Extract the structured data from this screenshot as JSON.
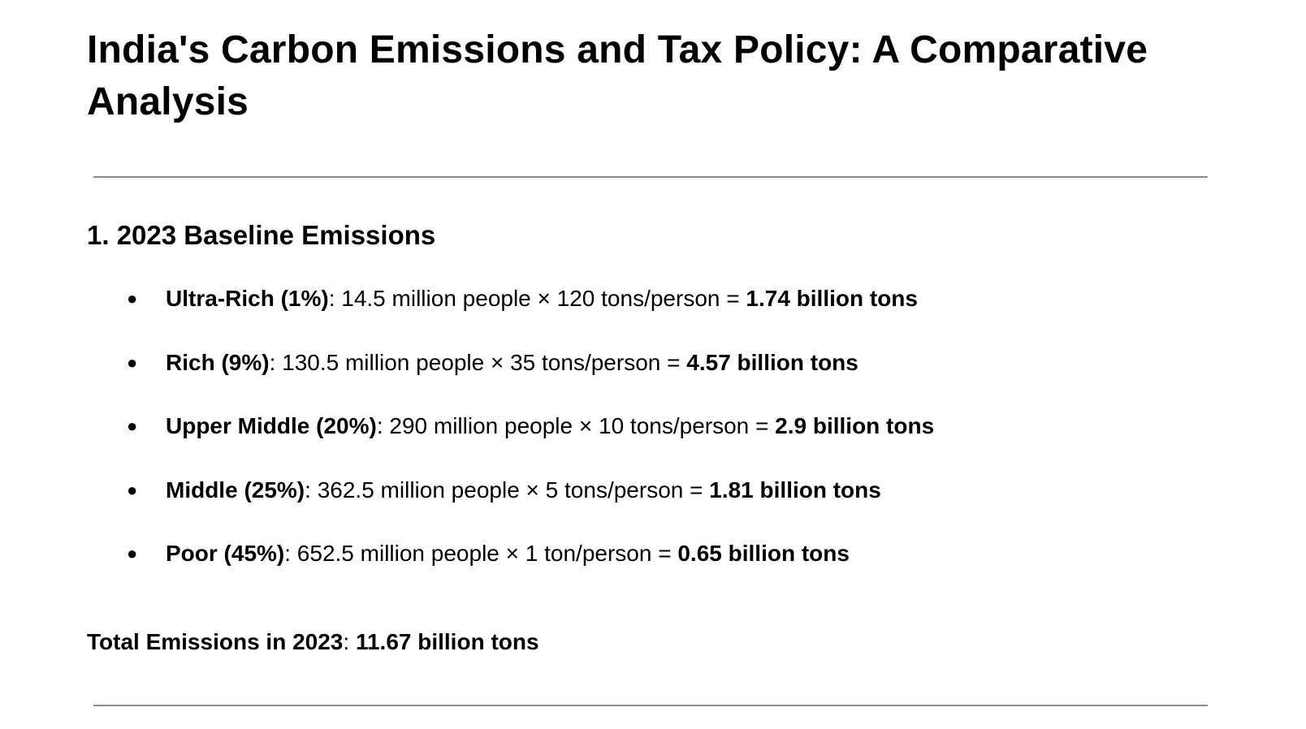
{
  "document": {
    "title": "India's Carbon Emissions and Tax Policy: A Comparative Analysis",
    "section": {
      "heading": "1. 2023 Baseline Emissions",
      "bullet_glyph": "●",
      "items": [
        {
          "group": "Ultra-Rich (1%)",
          "calculation": ": 14.5 million people × 120 tons/person = ",
          "result": "1.74 billion tons"
        },
        {
          "group": "Rich (9%)",
          "calculation": ": 130.5 million people × 35 tons/person = ",
          "result": "4.57 billion tons"
        },
        {
          "group": "Upper Middle (20%)",
          "calculation": ": 290 million people × 10 tons/person = ",
          "result": "2.9 billion tons"
        },
        {
          "group": "Middle (25%)",
          "calculation": ": 362.5 million people × 5 tons/person = ",
          "result": "1.81 billion tons"
        },
        {
          "group": "Poor (45%)",
          "calculation": ": 652.5 million people × 1 ton/person = ",
          "result": "0.65 billion tons"
        }
      ],
      "total": {
        "label": "Total Emissions in 2023",
        "separator": ": ",
        "value": "11.67 billion tons"
      }
    }
  },
  "colors": {
    "text": "#000000",
    "background": "#ffffff",
    "rule": "#8c8c8c"
  }
}
